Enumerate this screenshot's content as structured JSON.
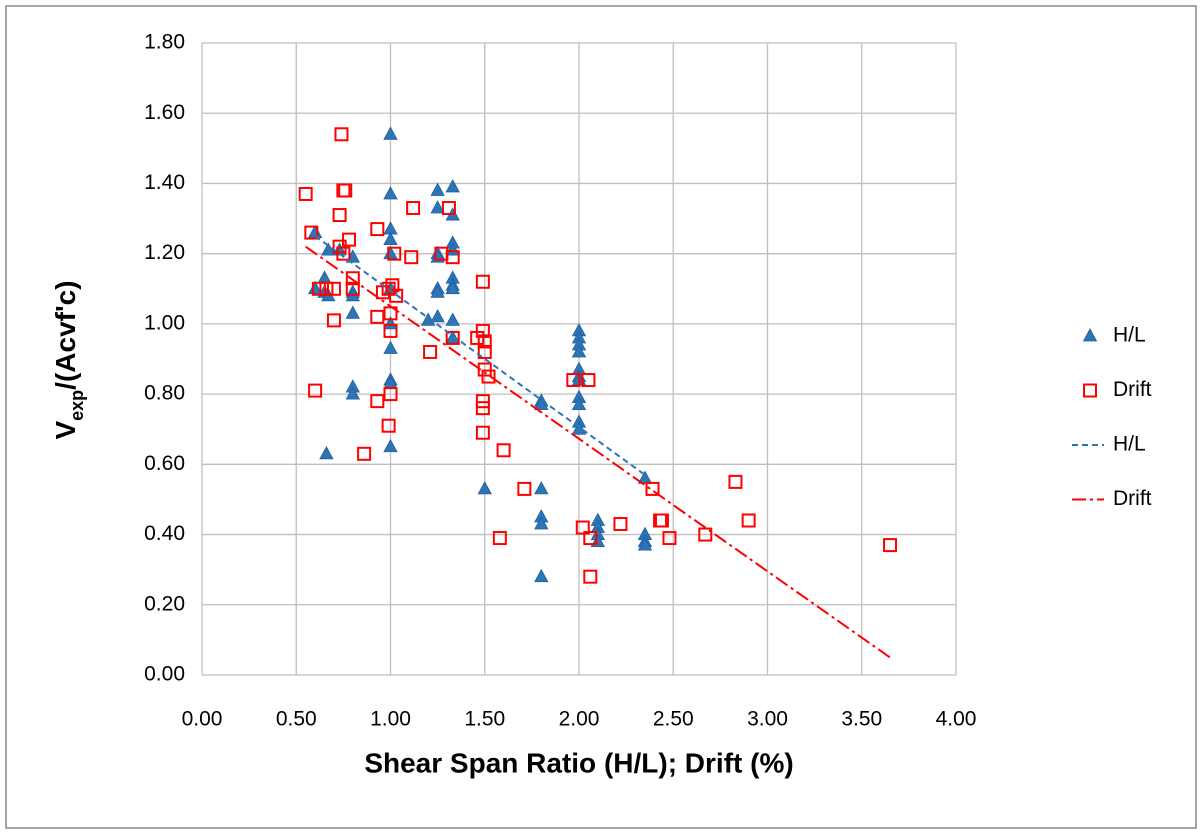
{
  "chart_data": {
    "type": "scatter",
    "x_label": "Shear Span Ratio (H/L); Drift (%)",
    "y_label": [
      "V",
      "exp",
      "/(Acvf'c)"
    ],
    "xlim": [
      0,
      4
    ],
    "ylim": [
      0,
      1.8
    ],
    "xticks": [
      {
        "value": 0,
        "label": "0.00"
      },
      {
        "value": 0.5,
        "label": "0.50"
      },
      {
        "value": 1,
        "label": "1.00"
      },
      {
        "value": 1.5,
        "label": "1.50"
      },
      {
        "value": 2,
        "label": "2.00"
      },
      {
        "value": 2.5,
        "label": "2.50"
      },
      {
        "value": 3,
        "label": "3.00"
      },
      {
        "value": 3.5,
        "label": "3.50"
      },
      {
        "value": 4,
        "label": "4.00"
      }
    ],
    "yticks": [
      {
        "value": 0,
        "label": "0.00"
      },
      {
        "value": 0.2,
        "label": "0.20"
      },
      {
        "value": 0.4,
        "label": "0.40"
      },
      {
        "value": 0.6,
        "label": "0.60"
      },
      {
        "value": 0.8,
        "label": "0.80"
      },
      {
        "value": 1,
        "label": "1.00"
      },
      {
        "value": 1.2,
        "label": "1.20"
      },
      {
        "value": 1.4,
        "label": "1.40"
      },
      {
        "value": 1.6,
        "label": "1.60"
      },
      {
        "value": 1.8,
        "label": "1.80"
      }
    ],
    "grid": true,
    "legend": "right",
    "series": [
      {
        "name": "H/L",
        "type": "scatter",
        "marker": "triangle",
        "color": "#2e75b6",
        "x": [
          0.6,
          0.6,
          0.65,
          0.65,
          0.66,
          0.67,
          0.67,
          0.73,
          0.8,
          0.8,
          0.8,
          0.8,
          0.8,
          0.8,
          1,
          1,
          1,
          1,
          1,
          1,
          1,
          1,
          1,
          1,
          1,
          1.2,
          1.25,
          1.25,
          1.25,
          1.25,
          1.25,
          1.25,
          1.25,
          1.33,
          1.33,
          1.33,
          1.33,
          1.33,
          1.33,
          1.33,
          1.33,
          1.33,
          1.5,
          1.8,
          1.8,
          1.8,
          1.8,
          1.8,
          1.8,
          2,
          2,
          2,
          2,
          2,
          2,
          2,
          2,
          2,
          2,
          2,
          2.1,
          2.1,
          2.1,
          2.1,
          2.35,
          2.35,
          2.35,
          2.35
        ],
        "values": [
          1.26,
          1.1,
          1.13,
          1.09,
          0.63,
          1.21,
          1.08,
          1.21,
          1.19,
          1.09,
          1.08,
          1.03,
          0.82,
          0.8,
          1.54,
          1.37,
          1.27,
          1.24,
          1.2,
          1.1,
          1,
          0.93,
          0.84,
          0.83,
          0.65,
          1.01,
          1.38,
          1.33,
          1.2,
          1.19,
          1.1,
          1.09,
          1.02,
          1.39,
          1.31,
          1.23,
          1.21,
          1.13,
          1.11,
          1.1,
          1.01,
          0.96,
          0.53,
          0.78,
          0.77,
          0.53,
          0.45,
          0.43,
          0.28,
          0.98,
          0.96,
          0.94,
          0.92,
          0.87,
          0.85,
          0.84,
          0.79,
          0.77,
          0.72,
          0.7,
          0.44,
          0.42,
          0.4,
          0.38,
          0.56,
          0.4,
          0.38,
          0.37
        ]
      },
      {
        "name": "Drift",
        "type": "scatter",
        "marker": "square",
        "color": "#ff0000",
        "x": [
          0.55,
          0.58,
          0.6,
          0.62,
          0.66,
          0.7,
          0.7,
          0.73,
          0.73,
          0.74,
          0.75,
          0.76,
          0.75,
          0.78,
          0.8,
          0.8,
          0.86,
          0.93,
          0.93,
          0.93,
          0.96,
          0.99,
          1,
          1,
          0.99,
          1,
          1.01,
          1.02,
          1.03,
          1.12,
          1.11,
          1.21,
          1.27,
          1.31,
          1.33,
          1.33,
          1.46,
          1.49,
          1.49,
          1.5,
          1.5,
          1.5,
          1.52,
          1.49,
          1.49,
          1.49,
          1.6,
          1.58,
          1.71,
          1.97,
          2.02,
          2.05,
          2.06,
          2.06,
          2.22,
          2.39,
          2.43,
          2.44,
          2.48,
          2.67,
          2.83,
          2.9,
          3.65
        ],
        "values": [
          1.37,
          1.26,
          0.81,
          1.1,
          1.1,
          1.1,
          1.01,
          1.31,
          1.22,
          1.54,
          1.38,
          1.38,
          1.2,
          1.24,
          1.13,
          1.1,
          0.63,
          1.27,
          1.02,
          0.78,
          1.09,
          1.1,
          1.03,
          0.98,
          0.71,
          0.8,
          1.11,
          1.2,
          1.08,
          1.33,
          1.19,
          0.92,
          1.2,
          1.33,
          1.19,
          0.96,
          0.96,
          1.12,
          0.98,
          0.95,
          0.92,
          0.87,
          0.85,
          0.78,
          0.76,
          0.69,
          0.64,
          0.39,
          0.53,
          0.84,
          0.42,
          0.84,
          0.39,
          0.28,
          0.43,
          0.53,
          0.44,
          0.44,
          0.39,
          0.4,
          0.55,
          0.44,
          0.37
        ]
      },
      {
        "name": "H/L",
        "type": "line",
        "dash": "dashed",
        "color": "#2e75b6",
        "x": [
          0.6,
          2.35
        ],
        "values": [
          1.25,
          0.57
        ]
      },
      {
        "name": "Drift",
        "type": "line",
        "dash": "dash-dot",
        "color": "#ff0000",
        "x": [
          0.55,
          3.65
        ],
        "values": [
          1.22,
          0.05
        ]
      }
    ]
  }
}
